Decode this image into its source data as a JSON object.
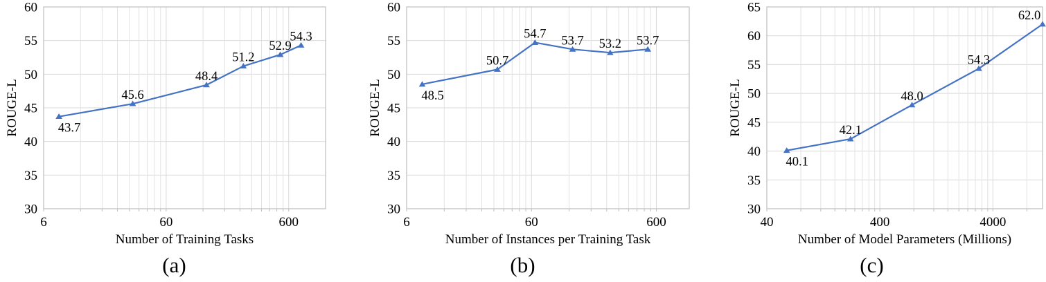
{
  "styles": {
    "series_color": "#4472C4",
    "major_grid_color": "#D9D9D9",
    "minor_grid_color": "#E2E2E2",
    "axis_color": "#BFBFBF",
    "text_color": "#000000"
  },
  "chart_data": [
    {
      "type": "line",
      "caption": "(a)",
      "xlabel": "Number of Training Tasks",
      "ylabel": "ROUGE-L",
      "x_scale": "log",
      "x": [
        8,
        32,
        128,
        256,
        512,
        757
      ],
      "values": [
        43.7,
        45.6,
        48.4,
        51.2,
        52.9,
        54.3
      ],
      "labels": [
        "43.7",
        "45.6",
        "48.4",
        "51.2",
        "52.9",
        "54.3"
      ],
      "label_positions": [
        "below",
        "above",
        "above",
        "above",
        "above",
        "above"
      ],
      "x_ticks": [
        6,
        60,
        600
      ],
      "x_tick_labels": [
        "6",
        "60",
        "600"
      ],
      "xlim": [
        6,
        1200
      ],
      "ylim": [
        30,
        60
      ],
      "y_ticks": [
        30,
        35,
        40,
        45,
        50,
        55,
        60
      ],
      "series_color": "#4472C4",
      "marker": "triangle-up",
      "grid": true,
      "legend": "none"
    },
    {
      "type": "line",
      "caption": "(b)",
      "xlabel": "Number of Instances per Training Task",
      "ylabel": "ROUGE-L",
      "x_scale": "log",
      "x": [
        8,
        32,
        64,
        128,
        256,
        512
      ],
      "values": [
        48.5,
        50.7,
        54.7,
        53.7,
        53.2,
        53.7
      ],
      "labels": [
        "48.5",
        "50.7",
        "54.7",
        "53.7",
        "53.2",
        "53.7"
      ],
      "label_positions": [
        "below",
        "above",
        "above",
        "above",
        "above",
        "above"
      ],
      "x_ticks": [
        6,
        60,
        600
      ],
      "x_tick_labels": [
        "6",
        "60",
        "600"
      ],
      "xlim": [
        6,
        1100
      ],
      "ylim": [
        30,
        60
      ],
      "y_ticks": [
        30,
        35,
        40,
        45,
        50,
        55,
        60
      ],
      "series_color": "#4472C4",
      "marker": "triangle-up",
      "grid": true,
      "legend": "none"
    },
    {
      "type": "line",
      "caption": "(c)",
      "xlabel": "Number of Model Parameters (Millions)",
      "ylabel": "ROUGE-L",
      "x_scale": "log",
      "x": [
        60,
        220,
        770,
        3000,
        11000
      ],
      "values": [
        40.1,
        42.1,
        48.0,
        54.3,
        62.0
      ],
      "labels": [
        "40.1",
        "42.1",
        "48.0",
        "54.3",
        "62.0"
      ],
      "label_positions": [
        "below",
        "above",
        "above",
        "above",
        "above"
      ],
      "x_ticks": [
        40,
        400,
        4000
      ],
      "x_tick_labels": [
        "40",
        "400",
        "4000"
      ],
      "xlim": [
        40,
        11000
      ],
      "ylim": [
        30,
        65
      ],
      "y_ticks": [
        30,
        35,
        40,
        45,
        50,
        55,
        60,
        65
      ],
      "series_color": "#4472C4",
      "marker": "triangle-up",
      "grid": true,
      "legend": "none"
    }
  ]
}
